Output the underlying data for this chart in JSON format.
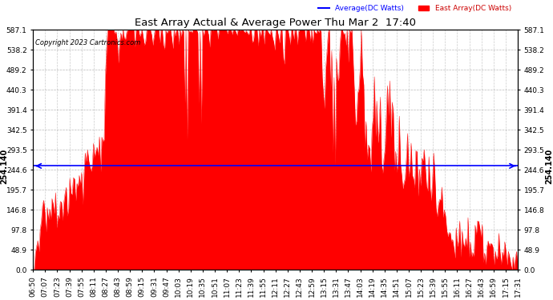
{
  "title": "East Array Actual & Average Power Thu Mar 2  17:40",
  "copyright": "Copyright 2023 Cartronics.com",
  "legend_avg": "Average(DC Watts)",
  "legend_east": "East Array(DC Watts)",
  "avg_value": 254.14,
  "ymax": 587.1,
  "yticks": [
    0.0,
    48.9,
    97.8,
    146.8,
    195.7,
    244.6,
    293.5,
    342.5,
    391.4,
    440.3,
    489.2,
    538.2,
    587.1
  ],
  "ytick_labels": [
    "0.0",
    "48.9",
    "97.8",
    "146.8",
    "195.7",
    "244.6",
    "293.5",
    "342.5",
    "391.4",
    "440.3",
    "489.2",
    "538.2",
    "587.1"
  ],
  "bg_color": "#ffffff",
  "fill_color": "#ff0000",
  "avg_line_color": "#0000ff",
  "grid_color": "#999999",
  "title_color": "#000000",
  "copyright_color": "#000000",
  "xtick_labels": [
    "06:50",
    "07:07",
    "07:23",
    "07:39",
    "07:55",
    "08:11",
    "08:27",
    "08:43",
    "08:59",
    "09:15",
    "09:31",
    "09:47",
    "10:03",
    "10:19",
    "10:35",
    "10:51",
    "11:07",
    "11:23",
    "11:39",
    "11:55",
    "12:11",
    "12:27",
    "12:43",
    "12:59",
    "13:15",
    "13:31",
    "13:47",
    "14:03",
    "14:19",
    "14:35",
    "14:51",
    "15:07",
    "15:23",
    "15:39",
    "15:55",
    "16:11",
    "16:27",
    "16:43",
    "16:59",
    "17:15",
    "17:31"
  ],
  "n_points": 410,
  "avg_label": "254.140"
}
